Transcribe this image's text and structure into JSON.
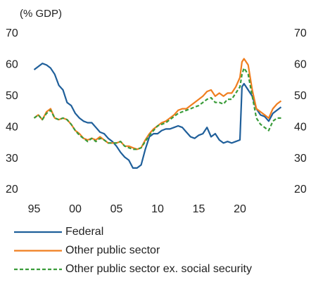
{
  "chart_data": {
    "type": "line",
    "subtitle": "(% GDP)",
    "xlim": [
      1994.7,
      2025.3
    ],
    "xticks": [
      {
        "value": 1995,
        "label": "95"
      },
      {
        "value": 2000,
        "label": "00"
      },
      {
        "value": 2005,
        "label": "05"
      },
      {
        "value": 2010,
        "label": "10"
      },
      {
        "value": 2015,
        "label": "15"
      },
      {
        "value": 2020,
        "label": "20"
      }
    ],
    "ylim": [
      20,
      70
    ],
    "yticks": [
      20,
      30,
      40,
      50,
      60,
      70
    ],
    "y2lim": [
      20,
      70
    ],
    "y2ticks": [
      20,
      30,
      40,
      50,
      60,
      70
    ],
    "series": [
      {
        "name": "Federal",
        "color": "#1f5f9a",
        "dashed": false,
        "x": [
          1995,
          1995.5,
          1996,
          1996.5,
          1997,
          1997.5,
          1998,
          1998.5,
          1999,
          1999.5,
          2000,
          2000.5,
          2001,
          2001.5,
          2002,
          2002.5,
          2003,
          2003.5,
          2004,
          2004.5,
          2005,
          2005.5,
          2006,
          2006.5,
          2007,
          2007.5,
          2008,
          2008.5,
          2009,
          2009.5,
          2010,
          2010.5,
          2011,
          2011.5,
          2012,
          2012.5,
          2013,
          2013.5,
          2014,
          2014.5,
          2015,
          2015.5,
          2016,
          2016.5,
          2017,
          2017.5,
          2018,
          2018.5,
          2019,
          2019.5,
          2020,
          2020.25,
          2020.5,
          2021,
          2021.5,
          2022,
          2022.5,
          2023,
          2023.5,
          2024,
          2024.5,
          2025
        ],
        "values": [
          58.5,
          59.5,
          60.5,
          60,
          59,
          57,
          53.5,
          52,
          48,
          47,
          44.5,
          43,
          42,
          41.5,
          41.5,
          40,
          38.5,
          38,
          36.5,
          35.5,
          34,
          32,
          30.5,
          29.5,
          27,
          27,
          28,
          33,
          37,
          38,
          38,
          39,
          39.5,
          39.5,
          40,
          40.5,
          40,
          38.5,
          37,
          36.5,
          37.5,
          38,
          40,
          37,
          38,
          36,
          35,
          35.5,
          35,
          35.5,
          36,
          53,
          54,
          52,
          50,
          46,
          44,
          43.5,
          42,
          44.5,
          45.5,
          46.5
        ]
      },
      {
        "name": "Other public sector",
        "color": "#f07e1f",
        "dashed": false,
        "x": [
          1995,
          1995.5,
          1996,
          1996.5,
          1997,
          1997.5,
          1998,
          1998.5,
          1999,
          1999.5,
          2000,
          2000.5,
          2001,
          2001.5,
          2002,
          2002.5,
          2003,
          2003.5,
          2004,
          2004.5,
          2005,
          2005.5,
          2006,
          2006.5,
          2007,
          2007.5,
          2008,
          2008.5,
          2009,
          2009.5,
          2010,
          2010.5,
          2011,
          2011.5,
          2012,
          2012.5,
          2013,
          2013.5,
          2014,
          2014.5,
          2015,
          2015.5,
          2016,
          2016.5,
          2017,
          2017.5,
          2018,
          2018.5,
          2019,
          2019.5,
          2020,
          2020.25,
          2020.5,
          2021,
          2021.5,
          2022,
          2022.5,
          2023,
          2023.5,
          2024,
          2024.5,
          2025
        ],
        "values": [
          43,
          44,
          42.5,
          45,
          46,
          43,
          42.5,
          43,
          42.5,
          41,
          39,
          38,
          36.5,
          36,
          36.5,
          36,
          37,
          36,
          35,
          35,
          35,
          35.5,
          34,
          34,
          33.5,
          33,
          33.5,
          36,
          38,
          39.5,
          40.5,
          41.5,
          42,
          43,
          44,
          45.5,
          46,
          46,
          47,
          48,
          49,
          50,
          51.5,
          52,
          50,
          51,
          50,
          51,
          51,
          53,
          56,
          61,
          62,
          60,
          52,
          46,
          45,
          44,
          43,
          46,
          47.5,
          48.5
        ]
      },
      {
        "name": "Other public sector ex. social security",
        "color": "#3a9c3a",
        "dashed": true,
        "x": [
          1995,
          1995.5,
          1996,
          1996.5,
          1997,
          1997.5,
          1998,
          1998.5,
          1999,
          1999.5,
          2000,
          2000.5,
          2001,
          2001.5,
          2002,
          2002.5,
          2003,
          2003.5,
          2004,
          2004.5,
          2005,
          2005.5,
          2006,
          2006.5,
          2007,
          2007.5,
          2008,
          2008.5,
          2009,
          2009.5,
          2010,
          2010.5,
          2011,
          2011.5,
          2012,
          2012.5,
          2013,
          2013.5,
          2014,
          2014.5,
          2015,
          2015.5,
          2016,
          2016.5,
          2017,
          2017.5,
          2018,
          2018.5,
          2019,
          2019.5,
          2020,
          2020.25,
          2020.5,
          2021,
          2021.5,
          2022,
          2022.5,
          2023,
          2023.5,
          2024,
          2024.5,
          2025
        ],
        "values": [
          43,
          44,
          42.5,
          44.5,
          45.5,
          43,
          42.5,
          43,
          42.5,
          41,
          39,
          37.5,
          36.5,
          35.5,
          36.5,
          35.5,
          36.5,
          36,
          35,
          35,
          35,
          35.5,
          34,
          33.5,
          33,
          33,
          33.5,
          35.5,
          37.5,
          39,
          40.5,
          41,
          41.5,
          42.5,
          43.5,
          44.5,
          45,
          45.5,
          46,
          46.5,
          47,
          48,
          49,
          49.5,
          48,
          48,
          47.5,
          49,
          49,
          51,
          53,
          57,
          59,
          57,
          50,
          43,
          41,
          40,
          39,
          42,
          43,
          43
        ]
      }
    ]
  }
}
